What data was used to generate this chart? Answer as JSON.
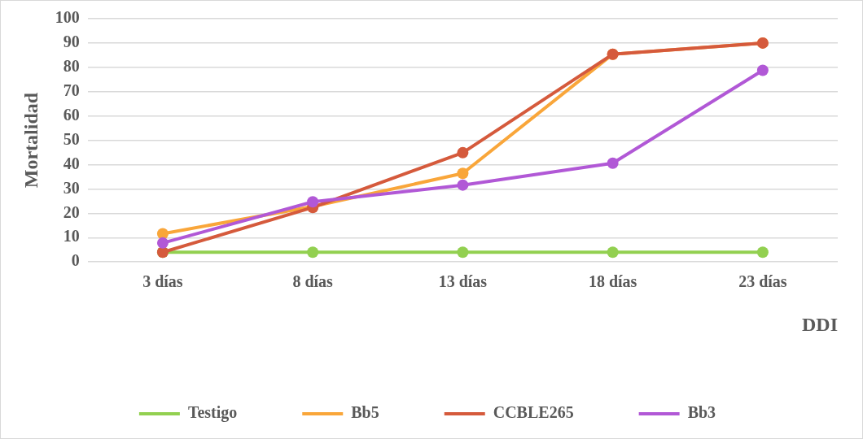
{
  "chart_data": {
    "type": "line",
    "xlabel": "DDI",
    "ylabel": "Mortalidad",
    "categories": [
      "3 días",
      "8 días",
      "13 días",
      "18 días",
      "23 días"
    ],
    "series": [
      {
        "name": "Testigo",
        "color": "#92d050",
        "values": [
          4,
          4,
          4,
          4,
          4
        ]
      },
      {
        "name": "Bb5",
        "color": "#f9a63a",
        "values": [
          11.6,
          22.8,
          36.4,
          85.4,
          90
        ]
      },
      {
        "name": "CCBLE265",
        "color": "#d55a3c",
        "values": [
          4,
          22.4,
          44.9,
          85.4,
          90
        ]
      },
      {
        "name": "Bb3",
        "color": "#b158d6",
        "values": [
          7.8,
          24.7,
          31.6,
          40.6,
          78.8
        ]
      }
    ],
    "ylim": [
      0,
      100
    ],
    "yticks": [
      0,
      10,
      20,
      30,
      40,
      50,
      60,
      70,
      80,
      90,
      100
    ],
    "grid": "y",
    "legend": "bottom",
    "marker": "circle",
    "line_style": "solid"
  }
}
